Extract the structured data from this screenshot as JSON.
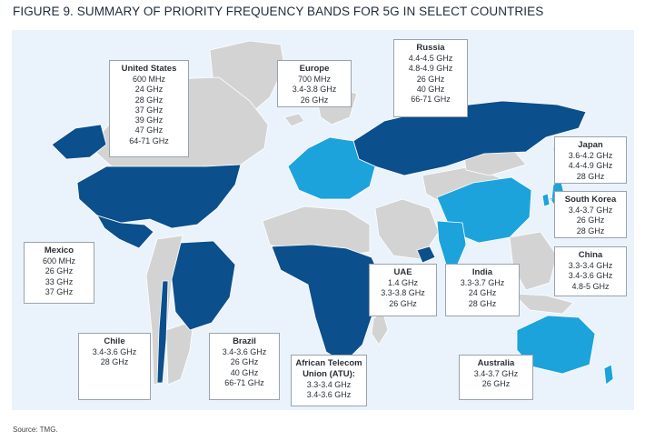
{
  "title": "FIGURE 9. SUMMARY OF PRIORITY FREQUENCY BANDS FOR 5G IN SELECT COUNTRIES",
  "source": "Source: TMG.",
  "colors": {
    "dark_blue": "#0b4f8c",
    "light_blue": "#1ca3dc",
    "gray": "#d3d3d3",
    "background": "#eaf3fb",
    "box_border": "#9aa3ad"
  },
  "countries": [
    {
      "id": "us",
      "name": "United States",
      "bands": [
        "600 MHz",
        "24 GHz",
        "28 GHz",
        "37 GHz",
        "39 GHz",
        "47 GHz",
        "64-71 GHz"
      ],
      "shade": "dark"
    },
    {
      "id": "europe",
      "name": "Europe",
      "bands": [
        "700 MHz",
        "3.4-3.8 GHz",
        "26 GHz"
      ],
      "shade": "light"
    },
    {
      "id": "russia",
      "name": "Russia",
      "bands": [
        "4.4-4.5 GHz",
        "4.8-4.9 GHz",
        "26 GHz",
        "40 GHz",
        "66-71 GHz"
      ],
      "shade": "dark"
    },
    {
      "id": "japan",
      "name": "Japan",
      "bands": [
        "3.6-4.2 GHz",
        "4.4-4.9 GHz",
        "28 GHz"
      ],
      "shade": "light"
    },
    {
      "id": "south_korea",
      "name": "South Korea",
      "bands": [
        "3.4-3.7 GHz",
        "26 GHz",
        "28 GHz"
      ],
      "shade": "light"
    },
    {
      "id": "china",
      "name": "China",
      "bands": [
        "3.3-3.4 GHz",
        "3.4-3.6 GHz",
        "4.8-5 GHz"
      ],
      "shade": "light"
    },
    {
      "id": "mexico",
      "name": "Mexico",
      "bands": [
        "600 MHz",
        "26 GHz",
        "33 GHz",
        "37 GHz"
      ],
      "shade": "dark"
    },
    {
      "id": "uae",
      "name": "UAE",
      "bands": [
        "1.4 GHz",
        "3.3-3.8 GHz",
        "26 GHz"
      ],
      "shade": "dark"
    },
    {
      "id": "india",
      "name": "India",
      "bands": [
        "3.3-3.7 GHz",
        "24 GHz",
        "28 GHz"
      ],
      "shade": "light"
    },
    {
      "id": "chile",
      "name": "Chile",
      "bands": [
        "3.4-3.6 GHz",
        "28 GHz"
      ],
      "shade": "dark"
    },
    {
      "id": "brazil",
      "name": "Brazil",
      "bands": [
        "3.4-3.6 GHz",
        "26 GHz",
        "40 GHz",
        "66-71 GHz"
      ],
      "shade": "dark"
    },
    {
      "id": "atu",
      "name": "African Telecom Union (ATU):",
      "bands": [
        "3.3-3.4 GHz",
        "3.4-3.6 GHz"
      ],
      "shade": "dark"
    },
    {
      "id": "australia",
      "name": "Australia",
      "bands": [
        "3.4-3.7 GHz",
        "26 GHz"
      ],
      "shade": "light"
    }
  ]
}
